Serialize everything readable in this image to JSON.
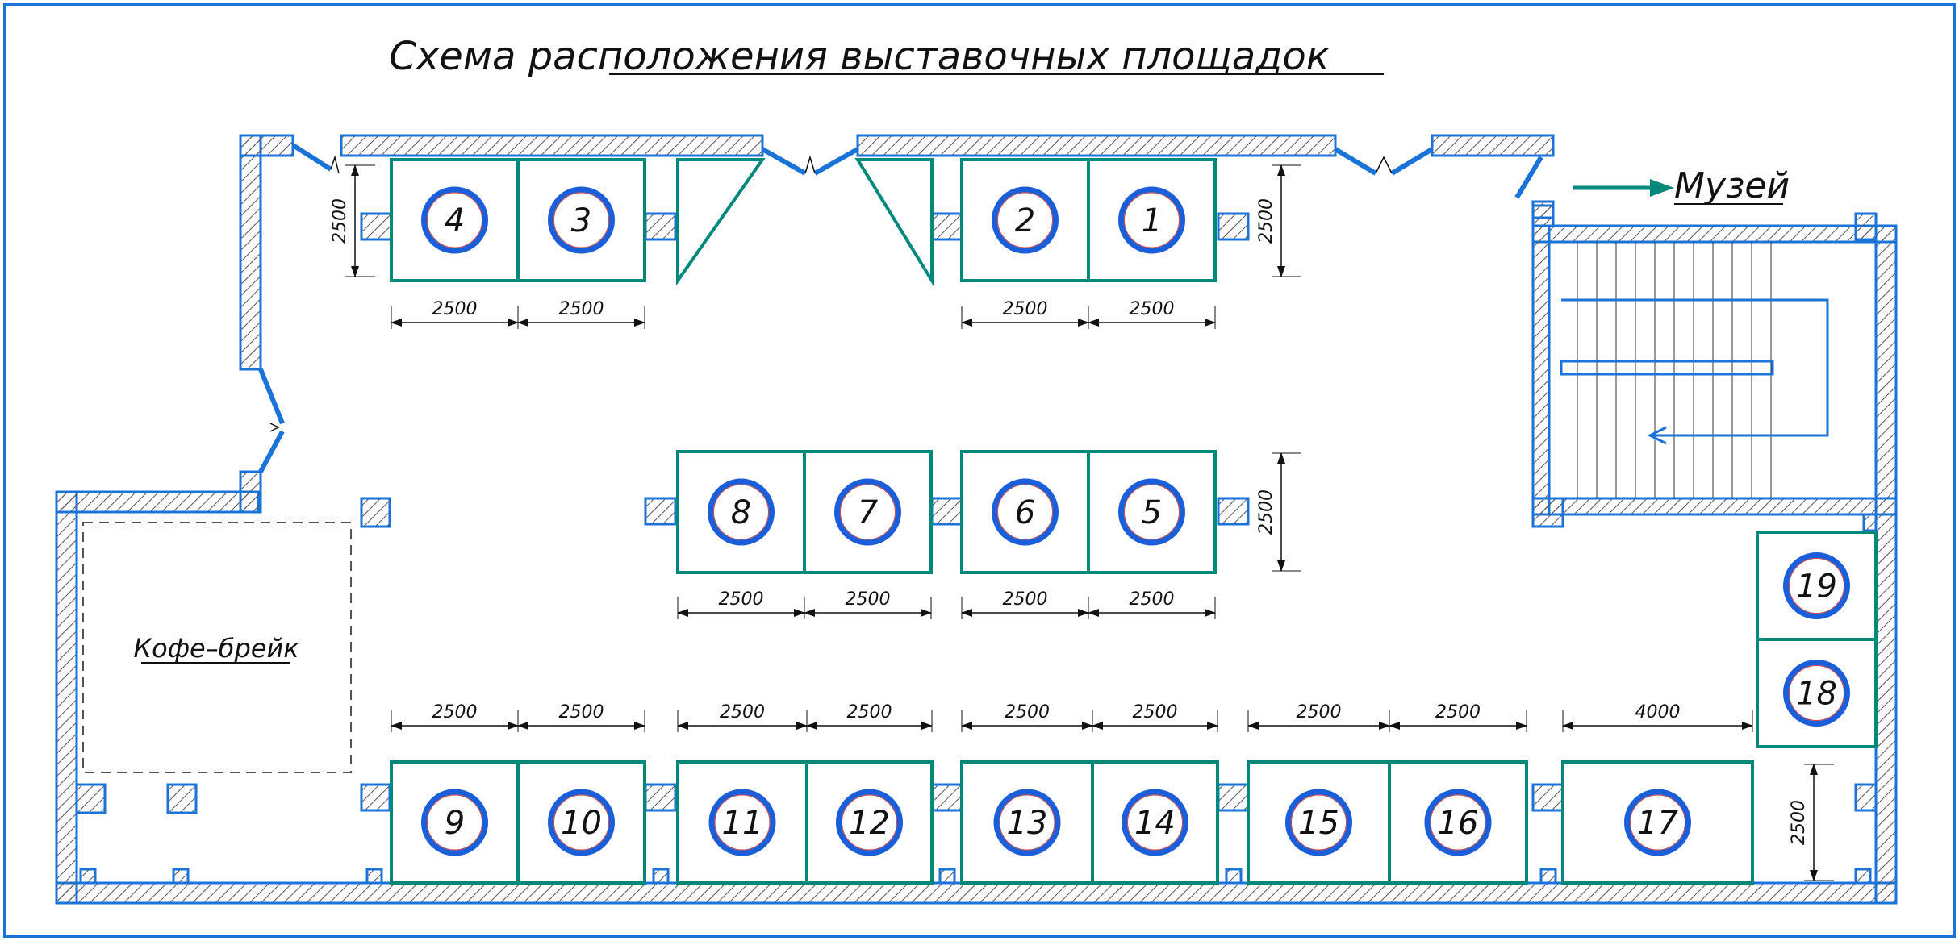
{
  "title": "Схема расположения выставочных площадок",
  "museum_label": "Музей",
  "coffee_label": "Кофе–брейк",
  "colors": {
    "wall": "#1a73d9",
    "booth": "#00897b",
    "circle": "#1a5fd9",
    "circle_inner": "#d04040",
    "dim": "#111111"
  },
  "booths": [
    {
      "id": "4",
      "label": "4"
    },
    {
      "id": "3",
      "label": "3"
    },
    {
      "id": "2",
      "label": "2"
    },
    {
      "id": "1",
      "label": "1"
    },
    {
      "id": "8",
      "label": "8"
    },
    {
      "id": "7",
      "label": "7"
    },
    {
      "id": "6",
      "label": "6"
    },
    {
      "id": "5",
      "label": "5"
    },
    {
      "id": "9",
      "label": "9"
    },
    {
      "id": "10",
      "label": "10"
    },
    {
      "id": "11",
      "label": "11"
    },
    {
      "id": "12",
      "label": "12"
    },
    {
      "id": "13",
      "label": "13"
    },
    {
      "id": "14",
      "label": "14"
    },
    {
      "id": "15",
      "label": "15"
    },
    {
      "id": "16",
      "label": "16"
    },
    {
      "id": "17",
      "label": "17"
    },
    {
      "id": "18",
      "label": "18"
    },
    {
      "id": "19",
      "label": "19"
    }
  ],
  "dimensions": {
    "standard": "2500",
    "wide": "4000"
  }
}
